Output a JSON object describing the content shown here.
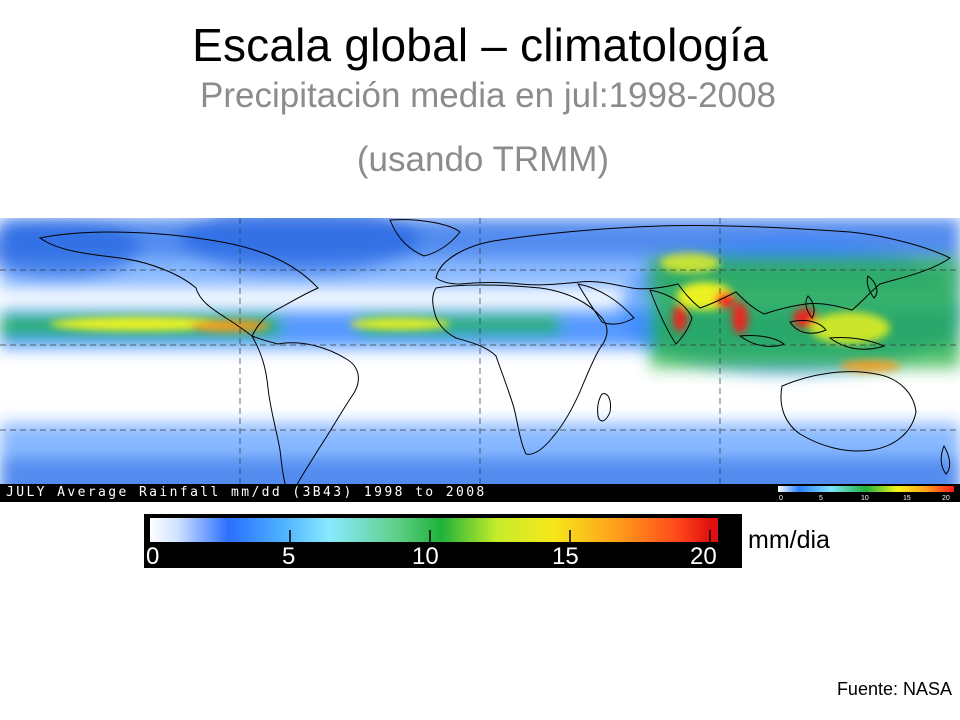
{
  "title": "Escala global – climatología",
  "subtitle": "Precipitación media en jul:1998-2008",
  "subtitle_line2": "(usando TRMM)",
  "map": {
    "caption": "JULY Average Rainfall mm/dd (3B43) 1998 to 2008",
    "mini_scale_ticks": [
      "0",
      "5",
      "10",
      "15",
      "20"
    ]
  },
  "legend": {
    "ticks": [
      "0",
      "5",
      "10",
      "15",
      "20"
    ],
    "range": [
      0,
      20
    ],
    "unit": "mm/dia",
    "colors": [
      "#ffffff",
      "#2a7fff",
      "#7fe5ff",
      "#1fb23a",
      "#f5f51a",
      "#ff9a1a",
      "#ff1a1a"
    ]
  },
  "source": "Fuente: NASA"
}
